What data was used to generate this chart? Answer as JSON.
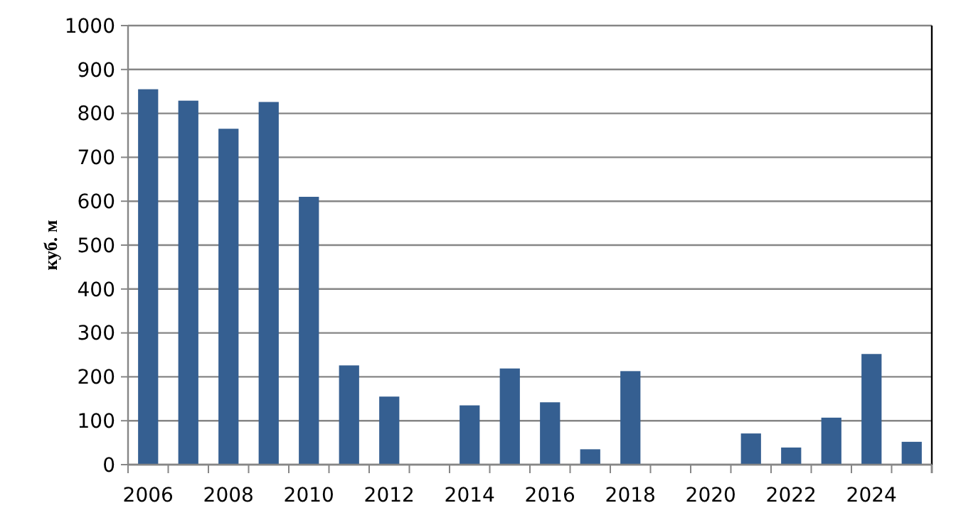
{
  "chart_data": {
    "type": "bar",
    "ylabel": "куб. м",
    "categories": [
      "2006",
      null,
      "2008",
      null,
      "2010",
      null,
      "2012",
      null,
      "2014",
      null,
      "2016",
      null,
      "2018",
      null,
      "2020",
      null,
      "2022",
      null,
      "2024",
      null
    ],
    "values": [
      855,
      829,
      765,
      826,
      610,
      226,
      155,
      null,
      135,
      219,
      142,
      35,
      213,
      null,
      null,
      71,
      39,
      107,
      252,
      52
    ],
    "color": "#355f91",
    "ylim": [
      0,
      1000
    ],
    "yticks": [
      0,
      100,
      200,
      300,
      400,
      500,
      600,
      700,
      800,
      900,
      1000
    ],
    "grid": "y"
  }
}
